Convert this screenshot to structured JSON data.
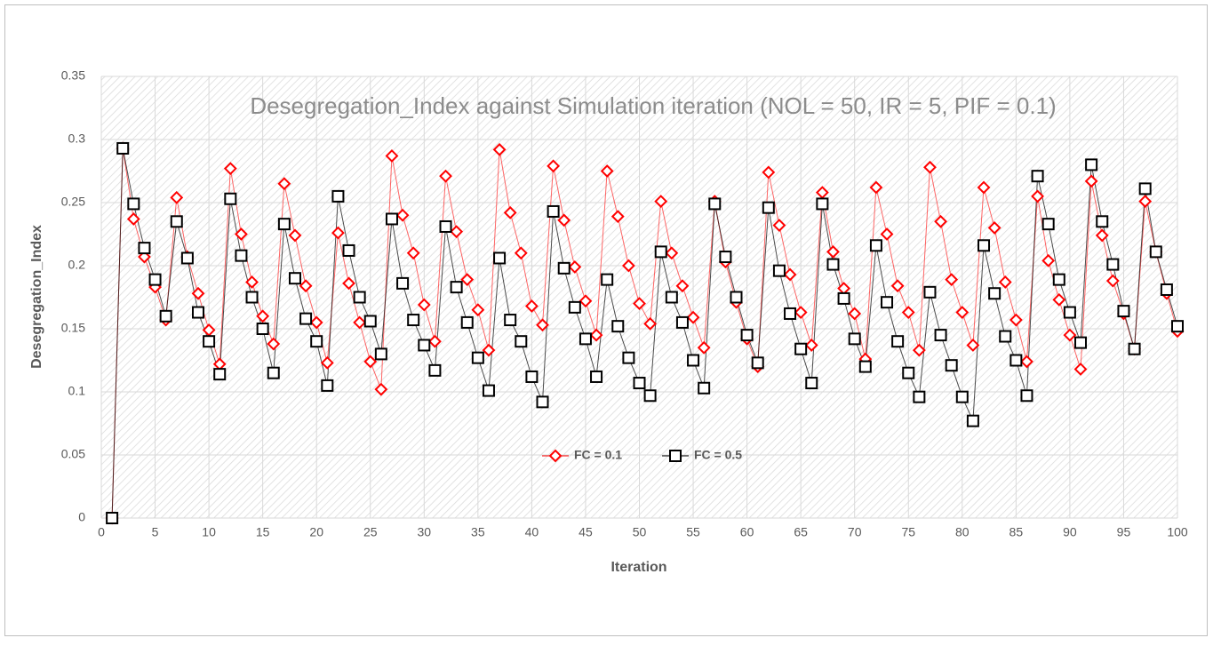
{
  "chart_data": {
    "type": "line",
    "title": "Desegregation_Index against Simulation iteration (NOL = 50, IR = 5, PIF = 0.1)",
    "x_label": "Iteration",
    "y_label": "Desegregation_Index",
    "x": [
      1,
      2,
      3,
      4,
      5,
      6,
      7,
      8,
      9,
      10,
      11,
      12,
      13,
      14,
      15,
      16,
      17,
      18,
      19,
      20,
      21,
      22,
      23,
      24,
      25,
      26,
      27,
      28,
      29,
      30,
      31,
      32,
      33,
      34,
      35,
      36,
      37,
      38,
      39,
      40,
      41,
      42,
      43,
      44,
      45,
      46,
      47,
      48,
      49,
      50,
      51,
      52,
      53,
      54,
      55,
      56,
      57,
      58,
      59,
      60,
      61,
      62,
      63,
      64,
      65,
      66,
      67,
      68,
      69,
      70,
      71,
      72,
      73,
      74,
      75,
      76,
      77,
      78,
      79,
      80,
      81,
      82,
      83,
      84,
      85,
      86,
      87,
      88,
      89,
      90,
      91,
      92,
      93,
      94,
      95,
      96,
      97,
      98,
      99,
      100
    ],
    "series": [
      {
        "name": "FC = 0.1",
        "color": "#ff0000",
        "marker": "diamond",
        "values": [
          0,
          0.293,
          0.237,
          0.207,
          0.183,
          0.157,
          0.254,
          0.207,
          0.178,
          0.149,
          0.122,
          0.277,
          0.225,
          0.187,
          0.16,
          0.138,
          0.265,
          0.224,
          0.184,
          0.155,
          0.123,
          0.226,
          0.186,
          0.155,
          0.124,
          0.102,
          0.287,
          0.24,
          0.21,
          0.169,
          0.14,
          0.271,
          0.227,
          0.189,
          0.165,
          0.133,
          0.292,
          0.242,
          0.21,
          0.168,
          0.153,
          0.279,
          0.236,
          0.199,
          0.172,
          0.145,
          0.275,
          0.239,
          0.2,
          0.17,
          0.154,
          0.251,
          0.21,
          0.184,
          0.159,
          0.135,
          0.251,
          0.203,
          0.171,
          0.142,
          0.12,
          0.274,
          0.232,
          0.193,
          0.163,
          0.137,
          0.258,
          0.211,
          0.182,
          0.162,
          0.126,
          0.262,
          0.225,
          0.184,
          0.163,
          0.133,
          0.278,
          0.235,
          0.189,
          0.163,
          0.137,
          0.262,
          0.23,
          0.187,
          0.157,
          0.124,
          0.255,
          0.204,
          0.173,
          0.145,
          0.118,
          0.267,
          0.224,
          0.188,
          0.162,
          0.134,
          0.251,
          0.211,
          0.178,
          0.148
        ]
      },
      {
        "name": "FC = 0.5",
        "color": "#000000",
        "marker": "square",
        "values": [
          0,
          0.293,
          0.249,
          0.214,
          0.189,
          0.16,
          0.235,
          0.206,
          0.163,
          0.14,
          0.114,
          0.253,
          0.208,
          0.175,
          0.15,
          0.115,
          0.233,
          0.19,
          0.158,
          0.14,
          0.105,
          0.255,
          0.212,
          0.175,
          0.156,
          0.13,
          0.237,
          0.186,
          0.157,
          0.137,
          0.117,
          0.231,
          0.183,
          0.155,
          0.127,
          0.101,
          0.206,
          0.157,
          0.14,
          0.112,
          0.092,
          0.243,
          0.198,
          0.167,
          0.142,
          0.112,
          0.189,
          0.152,
          0.127,
          0.107,
          0.097,
          0.211,
          0.175,
          0.155,
          0.125,
          0.103,
          0.249,
          0.207,
          0.175,
          0.145,
          0.123,
          0.246,
          0.196,
          0.162,
          0.134,
          0.107,
          0.249,
          0.201,
          0.174,
          0.142,
          0.12,
          0.216,
          0.171,
          0.14,
          0.115,
          0.096,
          0.179,
          0.145,
          0.121,
          0.096,
          0.077,
          0.216,
          0.178,
          0.144,
          0.125,
          0.097,
          0.271,
          0.233,
          0.189,
          0.163,
          0.139,
          0.28,
          0.235,
          0.201,
          0.164,
          0.134,
          0.261,
          0.211,
          0.181,
          0.152
        ]
      }
    ],
    "xlim": [
      0,
      100
    ],
    "xticks": [
      0,
      5,
      10,
      15,
      20,
      25,
      30,
      35,
      40,
      45,
      50,
      55,
      60,
      65,
      70,
      75,
      80,
      85,
      90,
      95,
      100
    ],
    "ylim": [
      0,
      0.35
    ],
    "yticks": [
      0,
      0.05,
      0.1,
      0.15,
      0.2,
      0.25,
      0.3,
      0.35
    ],
    "grid": true,
    "legend": "inside-bottom-center"
  }
}
